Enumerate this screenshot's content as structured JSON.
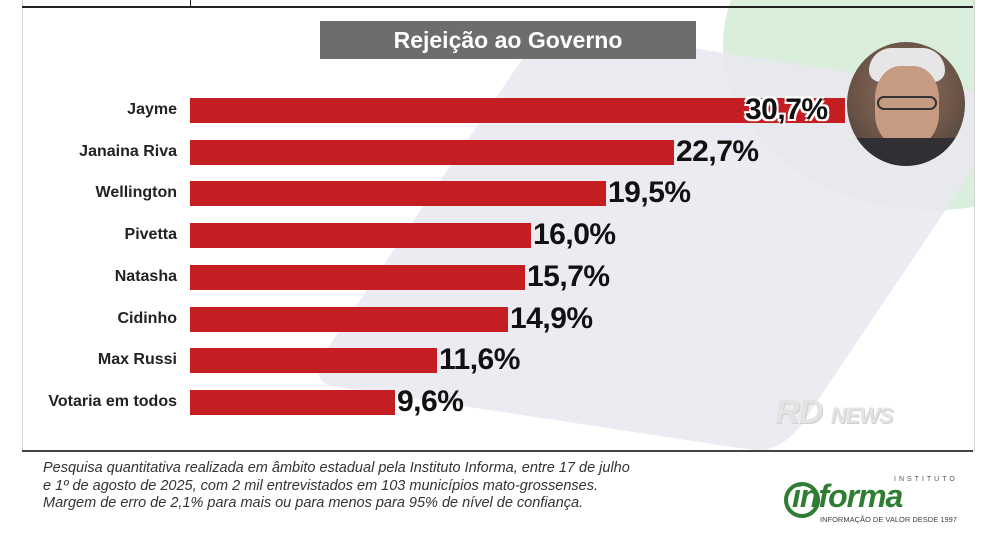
{
  "chart_data": {
    "type": "bar",
    "orientation": "horizontal",
    "title": "Rejeição ao Governo",
    "categories": [
      "Jayme",
      "Janaina Riva",
      "Wellington",
      "Pivetta",
      "Natasha",
      "Cidinho",
      "Max Russi",
      "Votaria em todos"
    ],
    "values": [
      30.7,
      22.7,
      19.5,
      16.0,
      15.7,
      14.9,
      11.6,
      9.6
    ],
    "value_labels": [
      "30,7%",
      "22,7%",
      "19,5%",
      "16,0%",
      "15,7%",
      "14,9%",
      "11,6%",
      "9,6%"
    ],
    "unit": "%",
    "bar_color": "#c51e22",
    "xlim": [
      0,
      30.7
    ]
  },
  "footnote": {
    "line1": "Pesquisa quantitativa realizada em âmbito estadual pela Instituto Informa, entre 17 de julho",
    "line2": "e 1º de agosto de 2025, com 2 mil entrevistados em 103 municípios mato-grossenses.",
    "line3": "Margem de erro de 2,1% para mais ou para menos para 95% de nível de confiança."
  },
  "watermark": {
    "brand": "RD",
    "suffix": "NEWS"
  },
  "logo": {
    "name": "informa",
    "institute": "INSTITUTO",
    "tagline": "INFORMAÇÃO DE VALOR DESDE 1997"
  },
  "colors": {
    "title_bg": "#6d6d6d",
    "bar": "#c51e22",
    "logo_green": "#2e7d32"
  }
}
